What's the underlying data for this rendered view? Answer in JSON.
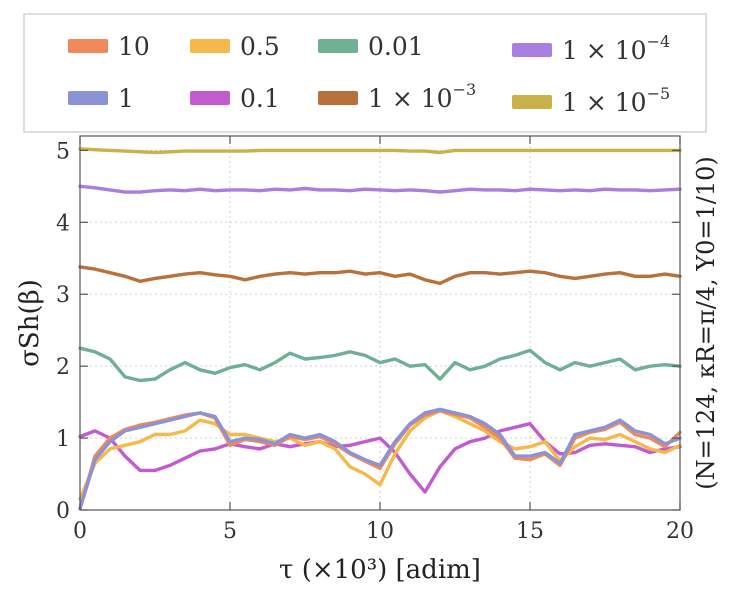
{
  "chart_data": {
    "type": "line",
    "title": "",
    "xlabel": "τ (×10³) [adim]",
    "ylabel": "σSh(β)",
    "right_label": "(N=124, κR=π/4, Υ0=1/10)",
    "xlim": [
      0,
      20
    ],
    "ylim": [
      0,
      5.2
    ],
    "xticks": [
      0,
      5,
      10,
      15,
      20
    ],
    "yticks": [
      0,
      1,
      2,
      3,
      4,
      5
    ],
    "grid": true,
    "legend_position": "top",
    "x": [
      0,
      0.5,
      1,
      1.5,
      2,
      2.5,
      3,
      3.5,
      4,
      4.5,
      5,
      5.5,
      6,
      6.5,
      7,
      7.5,
      8,
      8.5,
      9,
      9.5,
      10,
      10.5,
      11,
      11.5,
      12,
      12.5,
      13,
      13.5,
      14,
      14.5,
      15,
      15.5,
      16,
      16.5,
      17,
      17.5,
      18,
      18.5,
      19,
      19.5,
      20
    ],
    "series": [
      {
        "name": "1",
        "legend_text": "1",
        "color": "#8b93d6",
        "values": [
          0.02,
          0.7,
          0.95,
          1.1,
          1.15,
          1.2,
          1.25,
          1.3,
          1.35,
          1.3,
          0.95,
          1.0,
          0.98,
          0.92,
          1.05,
          1.0,
          1.05,
          0.95,
          0.8,
          0.7,
          0.62,
          0.95,
          1.2,
          1.35,
          1.4,
          1.35,
          1.3,
          1.2,
          1.05,
          0.75,
          0.75,
          0.8,
          0.65,
          1.05,
          1.1,
          1.15,
          1.25,
          1.1,
          1.05,
          0.92,
          1.0
        ]
      },
      {
        "name": "10",
        "legend_text": "10",
        "color": "#f0885a",
        "values": [
          0.02,
          0.75,
          1.0,
          1.12,
          1.18,
          1.22,
          1.27,
          1.32,
          1.35,
          1.28,
          0.9,
          0.98,
          0.95,
          0.9,
          1.02,
          0.98,
          1.02,
          0.92,
          0.78,
          0.68,
          0.58,
          0.92,
          1.18,
          1.32,
          1.38,
          1.33,
          1.28,
          1.15,
          1.0,
          0.72,
          0.7,
          0.78,
          0.62,
          1.0,
          1.08,
          1.12,
          1.22,
          1.05,
          1.0,
          0.88,
          1.08
        ]
      },
      {
        "name": "0.5",
        "legend_text": "0.5",
        "color": "#f6b84a",
        "values": [
          0.15,
          0.65,
          0.85,
          0.9,
          0.95,
          1.05,
          1.05,
          1.1,
          1.25,
          1.2,
          1.05,
          1.05,
          1.0,
          0.95,
          1.0,
          0.9,
          0.95,
          0.85,
          0.6,
          0.5,
          0.35,
          0.78,
          1.1,
          1.28,
          1.38,
          1.3,
          1.2,
          1.1,
          0.95,
          0.85,
          0.88,
          0.95,
          0.68,
          0.88,
          1.0,
          0.98,
          1.05,
          0.95,
          0.85,
          0.8,
          0.9
        ]
      },
      {
        "name": "0.1",
        "legend_text": "0.1",
        "color": "#c25bd0",
        "values": [
          1.02,
          1.1,
          1.0,
          0.75,
          0.55,
          0.55,
          0.62,
          0.72,
          0.82,
          0.85,
          0.92,
          0.88,
          0.85,
          0.92,
          0.88,
          0.92,
          0.95,
          0.88,
          0.9,
          0.95,
          1.0,
          0.8,
          0.5,
          0.25,
          0.6,
          0.85,
          0.95,
          1.0,
          1.1,
          1.15,
          1.2,
          0.95,
          0.78,
          0.8,
          0.9,
          0.92,
          0.9,
          0.88,
          0.8,
          0.85,
          0.88
        ]
      },
      {
        "name": "0.01",
        "legend_text": "0.01",
        "color": "#6fb094",
        "values": [
          2.25,
          2.2,
          2.1,
          1.85,
          1.8,
          1.82,
          1.95,
          2.05,
          1.95,
          1.9,
          1.98,
          2.02,
          1.95,
          2.05,
          2.18,
          2.1,
          2.12,
          2.15,
          2.2,
          2.15,
          2.05,
          2.1,
          2.0,
          2.02,
          1.82,
          2.05,
          1.95,
          2.0,
          2.1,
          2.15,
          2.22,
          2.05,
          1.95,
          2.05,
          2.0,
          2.05,
          2.1,
          1.95,
          2.0,
          2.02,
          2.0
        ]
      },
      {
        "name": "1×10⁻³",
        "legend_text": "1 × 10",
        "legend_exp": "−3",
        "color": "#b9713c",
        "values": [
          3.38,
          3.35,
          3.3,
          3.25,
          3.18,
          3.22,
          3.25,
          3.28,
          3.3,
          3.27,
          3.25,
          3.2,
          3.25,
          3.28,
          3.3,
          3.28,
          3.3,
          3.3,
          3.32,
          3.28,
          3.3,
          3.25,
          3.28,
          3.2,
          3.15,
          3.25,
          3.3,
          3.3,
          3.28,
          3.3,
          3.32,
          3.3,
          3.25,
          3.22,
          3.25,
          3.28,
          3.3,
          3.25,
          3.25,
          3.28,
          3.25
        ]
      },
      {
        "name": "1×10⁻⁴",
        "legend_text": "1 × 10",
        "legend_exp": "−4",
        "color": "#a87ee0",
        "values": [
          4.5,
          4.48,
          4.45,
          4.42,
          4.42,
          4.44,
          4.45,
          4.44,
          4.46,
          4.44,
          4.45,
          4.45,
          4.44,
          4.46,
          4.45,
          4.47,
          4.45,
          4.45,
          4.44,
          4.46,
          4.45,
          4.44,
          4.45,
          4.44,
          4.42,
          4.44,
          4.46,
          4.45,
          4.45,
          4.44,
          4.46,
          4.45,
          4.44,
          4.45,
          4.44,
          4.46,
          4.45,
          4.45,
          4.44,
          4.45,
          4.46
        ]
      },
      {
        "name": "1×10⁻⁵",
        "legend_text": "1 × 10",
        "legend_exp": "−5",
        "color": "#c9b24a",
        "values": [
          5.02,
          5.01,
          5.0,
          4.99,
          4.98,
          4.97,
          4.98,
          4.99,
          4.99,
          4.99,
          4.99,
          4.99,
          5.0,
          5.0,
          5.0,
          5.0,
          5.0,
          5.0,
          5.0,
          5.0,
          5.0,
          5.0,
          4.99,
          4.99,
          4.97,
          5.0,
          5.0,
          5.0,
          5.0,
          5.0,
          5.0,
          5.0,
          5.0,
          5.0,
          5.0,
          5.0,
          5.0,
          5.0,
          5.0,
          5.0,
          5.0
        ]
      }
    ],
    "draw_order": [
      "0.01",
      "1×10⁻³",
      "1×10⁻⁴",
      "1×10⁻⁵",
      "0.1",
      "0.5",
      "10",
      "1"
    ],
    "legend_order": [
      "10",
      "1",
      "0.5",
      "0.1",
      "0.01",
      "1×10⁻³",
      "1×10⁻⁴",
      "1×10⁻⁵"
    ]
  }
}
